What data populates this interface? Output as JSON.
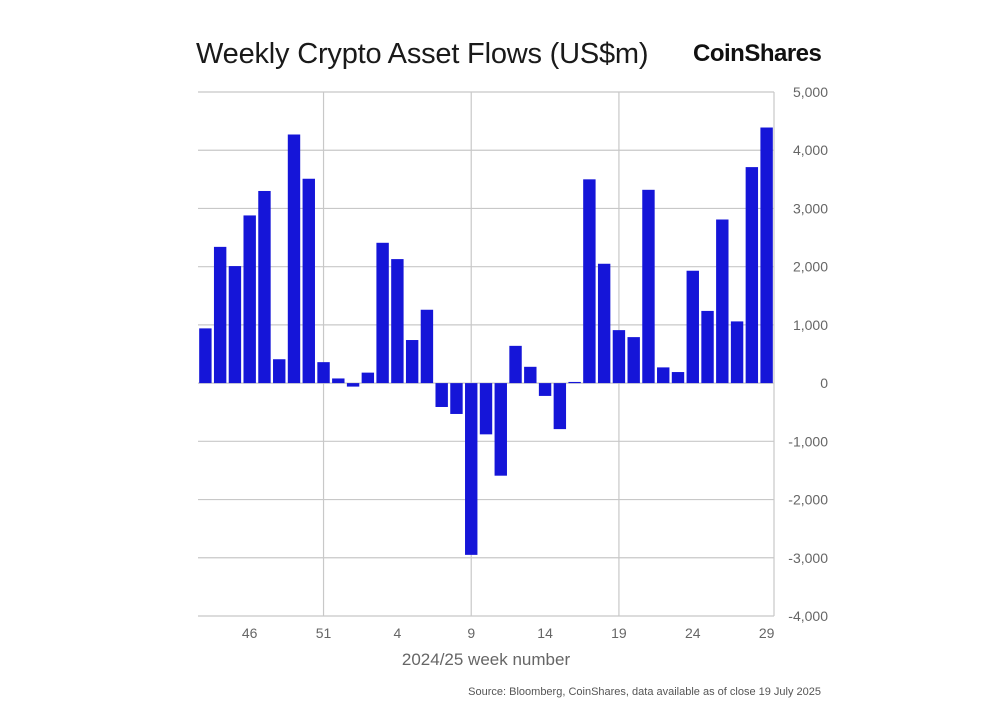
{
  "title": "Weekly Crypto Asset Flows (US$m)",
  "brand": "CoinShares",
  "source": "Source: Bloomberg, CoinShares, data available as of close 19 July 2025",
  "chart_data": {
    "type": "bar",
    "title": "Weekly Crypto Asset Flows (US$m)",
    "xlabel": "2024/25 week number",
    "ylabel": "",
    "ylim": [
      -4000,
      5000
    ],
    "yticks": [
      5000,
      4000,
      3000,
      2000,
      1000,
      0,
      -1000,
      -2000,
      -3000,
      -4000
    ],
    "ytick_labels": [
      "5,000",
      "4,000",
      "3,000",
      "2,000",
      "1,000",
      "0",
      "-1,000",
      "-2,000",
      "-3,000",
      "-4,000"
    ],
    "xtick_labels": [
      "46",
      "51",
      "4",
      "9",
      "14",
      "19",
      "24",
      "29"
    ],
    "xtick_indices": [
      3,
      8,
      13,
      18,
      23,
      28,
      33,
      38
    ],
    "vertical_gridline_indices": [
      8,
      18,
      28
    ],
    "grid": true,
    "bar_color": "#1515d8",
    "categories": [
      "43",
      "44",
      "45",
      "46",
      "47",
      "48",
      "49",
      "50",
      "51",
      "52",
      "1",
      "2",
      "3",
      "4",
      "5",
      "6",
      "7",
      "8",
      "9",
      "10",
      "11",
      "12",
      "13",
      "14",
      "15",
      "16",
      "17",
      "18",
      "19",
      "20",
      "21",
      "22",
      "23",
      "24",
      "25",
      "26",
      "27",
      "28",
      "29"
    ],
    "values": [
      940,
      2340,
      2010,
      2880,
      3300,
      410,
      4270,
      3510,
      360,
      80,
      -60,
      180,
      2410,
      2130,
      740,
      1260,
      -410,
      -530,
      -2950,
      -880,
      -1590,
      640,
      280,
      -220,
      -790,
      20,
      3500,
      2050,
      910,
      790,
      3320,
      270,
      190,
      1930,
      1240,
      2810,
      1060,
      3710,
      4390
    ]
  }
}
